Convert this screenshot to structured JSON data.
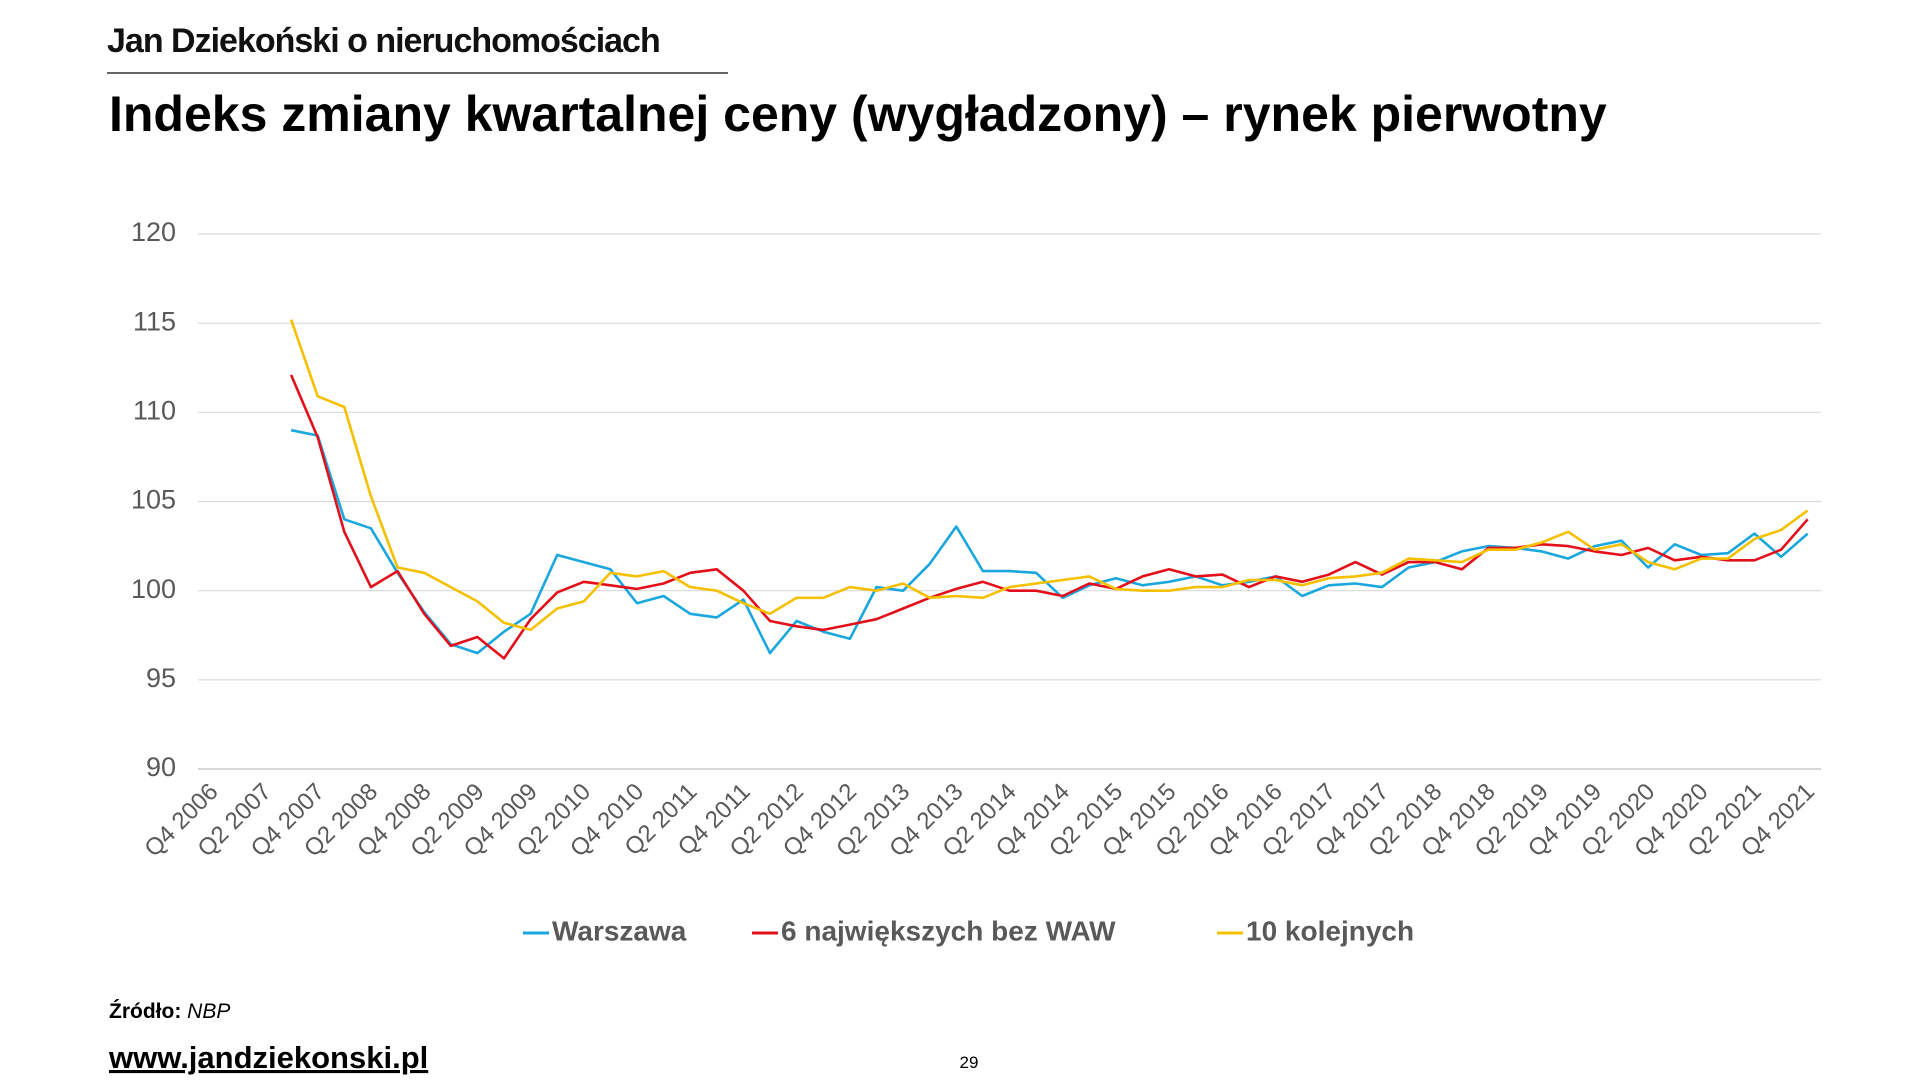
{
  "header": "Jan Dziekoński o nieruchomościach",
  "source_label": "Źródło:",
  "source": "NBP",
  "website": "www.jandziekonski.pl",
  "page_number": 29,
  "chart_data": {
    "type": "line",
    "title": "Indeks zmiany kwartalnej ceny (wygładzony) – rynek pierwotny",
    "categories": [
      "Q4 2006",
      null,
      "Q2 2007",
      null,
      "Q4 2007",
      null,
      "Q2 2008",
      null,
      "Q4 2008",
      null,
      "Q2 2009",
      null,
      "Q4 2009",
      null,
      "Q2 2010",
      null,
      "Q4 2010",
      null,
      "Q2 2011",
      null,
      "Q4 2011",
      null,
      "Q2 2012",
      null,
      "Q4 2012",
      null,
      "Q2 2013",
      null,
      "Q4 2013",
      null,
      "Q2 2014",
      null,
      "Q4 2014",
      null,
      "Q2 2015",
      null,
      "Q4 2015",
      null,
      "Q2 2016",
      null,
      "Q4 2016",
      null,
      "Q2 2017",
      null,
      "Q4 2017",
      null,
      "Q2 2018",
      null,
      "Q4 2018",
      null,
      "Q2 2019",
      null,
      "Q4 2019",
      null,
      "Q2 2020",
      null,
      "Q4 2020",
      null,
      "Q2 2021",
      null,
      "Q4 2021"
    ],
    "series": [
      {
        "name": "Warszawa",
        "color": "#1aa7de",
        "values": [
          null,
          null,
          null,
          109.0,
          108.7,
          104.0,
          103.5,
          101.0,
          98.8,
          97.0,
          96.5,
          97.7,
          98.7,
          102.0,
          101.6,
          101.2,
          99.3,
          99.7,
          98.7,
          98.5,
          99.5,
          96.5,
          98.3,
          97.7,
          97.3,
          100.2,
          100.0,
          101.5,
          103.6,
          101.1,
          101.1,
          101.0,
          99.6,
          100.3,
          100.7,
          100.3,
          100.5,
          100.8,
          100.3,
          100.5,
          100.8,
          99.7,
          100.3,
          100.4,
          100.2,
          101.3,
          101.6,
          102.2,
          102.5,
          102.4,
          102.2,
          101.8,
          102.5,
          102.8,
          101.3,
          102.6,
          102.0,
          102.1,
          103.2,
          101.9,
          103.2
        ]
      },
      {
        "name": "6 największych bez WAW",
        "color": "#e3101b",
        "values": [
          null,
          null,
          null,
          112.1,
          108.6,
          103.3,
          100.2,
          101.1,
          98.7,
          96.9,
          97.4,
          96.2,
          98.4,
          99.9,
          100.5,
          100.3,
          100.1,
          100.4,
          101.0,
          101.2,
          100.0,
          98.3,
          98.0,
          97.8,
          98.1,
          98.4,
          99.0,
          99.6,
          100.1,
          100.5,
          100.0,
          100.0,
          99.7,
          100.4,
          100.1,
          100.8,
          101.2,
          100.8,
          100.9,
          100.2,
          100.8,
          100.5,
          100.9,
          101.6,
          100.9,
          101.6,
          101.6,
          101.2,
          102.4,
          102.4,
          102.6,
          102.5,
          102.2,
          102.0,
          102.4,
          101.7,
          101.9,
          101.7,
          101.7,
          102.3,
          104.0
        ]
      },
      {
        "name": "10 kolejnych",
        "color": "#f5c000",
        "values": [
          null,
          null,
          null,
          115.2,
          110.9,
          110.3,
          105.3,
          101.3,
          101.0,
          100.2,
          99.4,
          98.2,
          97.8,
          99.0,
          99.4,
          101.0,
          100.8,
          101.1,
          100.2,
          100.0,
          99.3,
          98.7,
          99.6,
          99.6,
          100.2,
          100.0,
          100.4,
          99.6,
          99.7,
          99.6,
          100.2,
          100.4,
          100.6,
          100.8,
          100.1,
          100.0,
          100.0,
          100.2,
          100.2,
          100.6,
          100.6,
          100.3,
          100.7,
          100.8,
          101.0,
          101.8,
          101.7,
          101.6,
          102.3,
          102.3,
          102.7,
          103.3,
          102.3,
          102.6,
          101.6,
          101.2,
          101.8,
          101.8,
          102.9,
          103.4,
          104.5
        ]
      }
    ],
    "ylim": [
      90,
      120
    ],
    "yticks": [
      90,
      95,
      100,
      105,
      110,
      115,
      120
    ],
    "grid": true,
    "legend": "bottom"
  }
}
